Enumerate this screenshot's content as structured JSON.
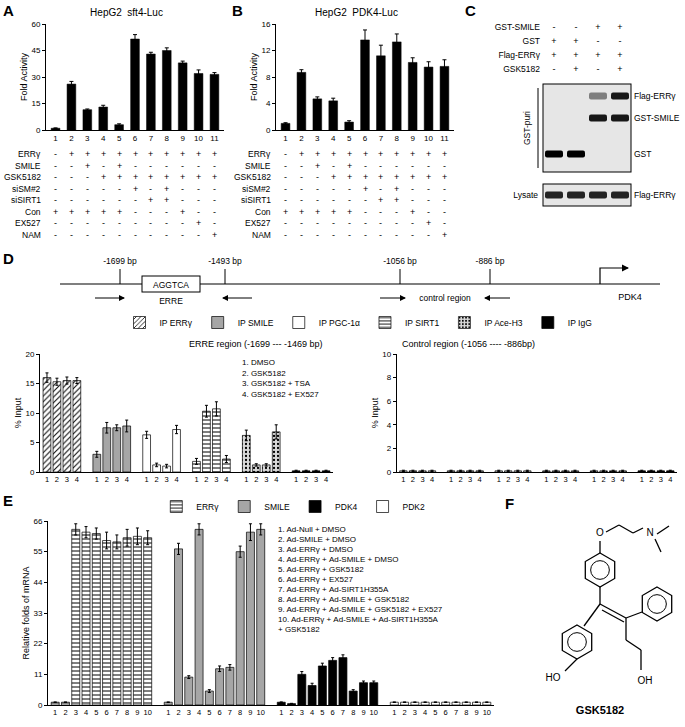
{
  "panel_labels": [
    "A",
    "B",
    "C",
    "D",
    "E",
    "F"
  ],
  "chart_data": [
    {
      "type": "bar",
      "title": "HepG2  sft4-Luc",
      "ylabel": "Fold Activity",
      "categories": [
        "1",
        "2",
        "3",
        "4",
        "5",
        "6",
        "7",
        "8",
        "9",
        "10",
        "11"
      ],
      "values": [
        1,
        26,
        11.5,
        13,
        3,
        51.5,
        43,
        45,
        38,
        32,
        31.5
      ],
      "errors": [
        0.2,
        1.5,
        0.4,
        1,
        0.5,
        2.5,
        1,
        1.5,
        1,
        2,
        1
      ],
      "color": "#000000",
      "ylim": [
        0,
        60
      ],
      "yticks": [
        0,
        15,
        30,
        45,
        60
      ],
      "conditions": [
        {
          "label": "ERRγ",
          "signs": [
            "-",
            "+",
            "+",
            "+",
            "+",
            "+",
            "+",
            "+",
            "+",
            "+",
            "+"
          ]
        },
        {
          "label": "SMILE",
          "signs": [
            "-",
            "-",
            "+",
            "-",
            "+",
            "-",
            "-",
            "-",
            "-",
            "-",
            "-"
          ]
        },
        {
          "label": "GSK5182",
          "signs": [
            "-",
            "-",
            "-",
            "+",
            "+",
            "+",
            "+",
            "+",
            "+",
            "+",
            "+"
          ]
        },
        {
          "label": "siSM#2",
          "signs": [
            "-",
            "-",
            "-",
            "-",
            "-",
            "+",
            "-",
            "+",
            "-",
            "-",
            "-"
          ]
        },
        {
          "label": "siSIRT1",
          "signs": [
            "-",
            "-",
            "-",
            "-",
            "-",
            "-",
            "+",
            "+",
            "-",
            "-",
            "-"
          ]
        },
        {
          "label": "Con",
          "signs": [
            "+",
            "+",
            "+",
            "+",
            "+",
            "-",
            "-",
            "-",
            "+",
            "-",
            "-"
          ]
        },
        {
          "label": "EX527",
          "signs": [
            "-",
            "-",
            "-",
            "-",
            "-",
            "-",
            "-",
            "-",
            "-",
            "+",
            "-"
          ]
        },
        {
          "label": "NAM",
          "signs": [
            "-",
            "-",
            "-",
            "-",
            "-",
            "-",
            "-",
            "-",
            "-",
            "-",
            "+"
          ]
        }
      ]
    },
    {
      "type": "bar",
      "title": "HepG2  PDK4-Luc",
      "ylabel": "Fold Activity",
      "categories": [
        "1",
        "2",
        "3",
        "4",
        "5",
        "6",
        "7",
        "8",
        "9",
        "10",
        "11"
      ],
      "values": [
        1,
        8.7,
        4.7,
        4.4,
        1.2,
        13.6,
        11.2,
        13.3,
        10.2,
        9.5,
        9.6
      ],
      "errors": [
        0.1,
        0.4,
        0.3,
        0.4,
        0.2,
        1.5,
        1.6,
        1.2,
        0.7,
        0.8,
        1
      ],
      "color": "#000000",
      "ylim": [
        0,
        16
      ],
      "yticks": [
        0,
        4,
        8,
        12,
        16
      ],
      "conditions": [
        {
          "label": "ERRγ",
          "signs": [
            "-",
            "+",
            "+",
            "+",
            "+",
            "+",
            "+",
            "+",
            "+",
            "+",
            "+"
          ]
        },
        {
          "label": "SMILE",
          "signs": [
            "-",
            "-",
            "+",
            "-",
            "+",
            "-",
            "-",
            "-",
            "-",
            "-",
            "-"
          ]
        },
        {
          "label": "GSK5182",
          "signs": [
            "-",
            "-",
            "-",
            "+",
            "+",
            "+",
            "+",
            "+",
            "+",
            "+",
            "+"
          ]
        },
        {
          "label": "siSM#2",
          "signs": [
            "-",
            "-",
            "-",
            "-",
            "-",
            "+",
            "-",
            "+",
            "-",
            "-",
            "-"
          ]
        },
        {
          "label": "siSIRT1",
          "signs": [
            "-",
            "-",
            "-",
            "-",
            "-",
            "-",
            "+",
            "+",
            "-",
            "-",
            "-"
          ]
        },
        {
          "label": "Con",
          "signs": [
            "+",
            "+",
            "+",
            "+",
            "+",
            "-",
            "-",
            "-",
            "+",
            "-",
            "-"
          ]
        },
        {
          "label": "EX527",
          "signs": [
            "-",
            "-",
            "-",
            "-",
            "-",
            "-",
            "-",
            "-",
            "-",
            "+",
            "-"
          ]
        },
        {
          "label": "NAM",
          "signs": [
            "-",
            "-",
            "-",
            "-",
            "-",
            "-",
            "-",
            "-",
            "-",
            "-",
            "+"
          ]
        }
      ]
    },
    {
      "type": "bar",
      "title": "ERRE region (-1699 --- -1469 bp)",
      "ylabel": "% Input",
      "categories": [
        "1",
        "2",
        "3",
        "4"
      ],
      "ylim": [
        0,
        20
      ],
      "yticks": [
        0,
        5,
        10,
        15,
        20
      ],
      "legend": "top",
      "series": [
        {
          "name": "IP ERRγ",
          "color": "#ffffff",
          "marker": "hatch_diagonal",
          "values": [
            16,
            15.3,
            15.5,
            15.5
          ],
          "errors": [
            0.8,
            0.6,
            0.6,
            0.5
          ]
        },
        {
          "name": "IP SMILE",
          "color": "#a6a6a6",
          "marker": "solid",
          "values": [
            3,
            7.5,
            7.5,
            7.8
          ],
          "errors": [
            0.5,
            0.9,
            0.5,
            1
          ]
        },
        {
          "name": "IP PGC-1α",
          "color": "#ffffff",
          "marker": "solid",
          "values": [
            6.3,
            1.2,
            1,
            7.2
          ],
          "errors": [
            0.6,
            0.3,
            0.3,
            0.7
          ]
        },
        {
          "name": "IP SIRT1",
          "color": "#ffffff",
          "marker": "hatch_horizontal",
          "values": [
            1.8,
            10.3,
            10.7,
            2.2
          ],
          "errors": [
            0.5,
            1,
            1.2,
            0.6
          ]
        },
        {
          "name": "IP Ace-H3",
          "color": "#d9d9d9",
          "marker": "dotted",
          "values": [
            6.2,
            1.2,
            1.2,
            6.8
          ],
          "errors": [
            0.9,
            0.2,
            0.2,
            1.2
          ]
        },
        {
          "name": "IP IgG",
          "color": "#000000",
          "marker": "solid",
          "values": [
            0.2,
            0.2,
            0.2,
            0.2
          ],
          "errors": [
            0.1,
            0.1,
            0.1,
            0.1
          ]
        }
      ],
      "annotations": [
        "1. DMSO",
        "2. GSK5182",
        "3. GSK5182 + TSA",
        "4. GSK5182 + EX527"
      ]
    },
    {
      "type": "bar",
      "title": "Control region (-1056 ---- -886bp)",
      "ylabel": "% Input",
      "categories": [
        "1",
        "2",
        "3",
        "4"
      ],
      "ylim": [
        0,
        10
      ],
      "yticks": [
        0,
        2,
        4,
        6,
        8,
        10
      ],
      "series": [
        {
          "name": "IP ERRγ",
          "color": "#ffffff",
          "marker": "hatch_diagonal",
          "values": [
            0.1,
            0.1,
            0.1,
            0.1
          ],
          "errors": [
            0.05,
            0.05,
            0.05,
            0.05
          ]
        },
        {
          "name": "IP SMILE",
          "color": "#a6a6a6",
          "marker": "solid",
          "values": [
            0.1,
            0.1,
            0.1,
            0.1
          ],
          "errors": [
            0.05,
            0.05,
            0.05,
            0.05
          ]
        },
        {
          "name": "IP PGC-1α",
          "color": "#ffffff",
          "marker": "solid",
          "values": [
            0.1,
            0.1,
            0.1,
            0.1
          ],
          "errors": [
            0.05,
            0.05,
            0.05,
            0.05
          ]
        },
        {
          "name": "IP SIRT1",
          "color": "#ffffff",
          "marker": "hatch_horizontal",
          "values": [
            0.1,
            0.1,
            0.1,
            0.1
          ],
          "errors": [
            0.05,
            0.05,
            0.05,
            0.05
          ]
        },
        {
          "name": "IP Ace-H3",
          "color": "#d9d9d9",
          "marker": "dotted",
          "values": [
            0.1,
            0.1,
            0.1,
            0.1
          ],
          "errors": [
            0.05,
            0.05,
            0.05,
            0.05
          ]
        },
        {
          "name": "IP IgG",
          "color": "#000000",
          "marker": "solid",
          "values": [
            0.1,
            0.1,
            0.1,
            0.1
          ],
          "errors": [
            0.05,
            0.05,
            0.05,
            0.05
          ]
        }
      ]
    },
    {
      "type": "bar",
      "ylabel": "Relative folds of mRNA",
      "categories": [
        "1",
        "2",
        "3",
        "4",
        "5",
        "6",
        "7",
        "8",
        "9",
        "10"
      ],
      "ylim": [
        0,
        66
      ],
      "yticks": [
        0,
        11,
        22,
        33,
        44,
        55,
        66
      ],
      "legend": "top",
      "series": [
        {
          "name": "ERRγ",
          "color": "#ffffff",
          "marker": "hatch_horizontal",
          "values": [
            1,
            1,
            63,
            62,
            61.5,
            59,
            58.5,
            60,
            60.5,
            60
          ],
          "errors": [
            0.1,
            0.1,
            2,
            2,
            2,
            3,
            2.5,
            3,
            3,
            2.5
          ]
        },
        {
          "name": "SMILE",
          "color": "#a6a6a6",
          "marker": "solid",
          "values": [
            1,
            56,
            10,
            63,
            5,
            13,
            13.5,
            55,
            62,
            63
          ],
          "errors": [
            0.1,
            2,
            0.5,
            2,
            0.5,
            1,
            1,
            2,
            3,
            2
          ]
        },
        {
          "name": "PDK4",
          "color": "#000000",
          "marker": "solid",
          "values": [
            1,
            0.5,
            11,
            7,
            14,
            16,
            17,
            5,
            8,
            8
          ],
          "errors": [
            0.1,
            0.1,
            1,
            0.8,
            1,
            1,
            1,
            0.5,
            0.6,
            0.6
          ]
        },
        {
          "name": "PDK2",
          "color": "#ffffff",
          "marker": "solid",
          "values": [
            1,
            1,
            1,
            1,
            1,
            1,
            1,
            1,
            1,
            1
          ],
          "errors": [
            0.1,
            0.1,
            0.1,
            0.1,
            0.1,
            0.1,
            0.1,
            0.1,
            0.1,
            0.1
          ]
        }
      ],
      "annotations": [
        "1. Ad-Null + DMSO",
        "2. Ad-SMILE + DMSO",
        "3. Ad-ERRγ + DMSO",
        "4. Ad-ERRγ + Ad-SMILE + DMSO",
        "5. Ad-ERRγ + GSK5182",
        "6. Ad-ERRγ + EX527",
        "7. Ad-ERRγ + Ad-SIRT1H355A",
        "8. Ad-ERRγ + Ad-SMILE + GSK5182",
        "9. Ad-ERRγ + Ad-SMILE + GSK5182 + EX527",
        "10. Ad-ERRγ + Ad-SMILE + Ad-SIRT1H355A",
        "+ GSK5182"
      ]
    }
  ],
  "blot": {
    "conditions": [
      {
        "label": "GST-SMILE",
        "signs": [
          "-",
          "-",
          "+",
          "+"
        ]
      },
      {
        "label": "GST",
        "signs": [
          "+",
          "+",
          "-",
          "-"
        ]
      },
      {
        "label": "Flag-ERRγ",
        "signs": [
          "+",
          "+",
          "+",
          "+"
        ]
      },
      {
        "label": "GSK5182",
        "signs": [
          "-",
          "+",
          "-",
          "+"
        ]
      }
    ],
    "panels": [
      {
        "label": "GST-puri",
        "bands": [
          {
            "label": "Flag-ERRγ",
            "intensity": [
              0,
              0,
              0.45,
              0.9
            ]
          },
          {
            "label": "GST-SMILE",
            "intensity": [
              0,
              0,
              0.9,
              0.9
            ]
          },
          {
            "label": "GST",
            "intensity": [
              1,
              1,
              0,
              0
            ]
          }
        ]
      },
      {
        "label": "Lysate",
        "bands": [
          {
            "label": "Flag-ERRγ",
            "intensity": [
              0.85,
              0.85,
              0.85,
              0.85
            ]
          }
        ]
      }
    ]
  },
  "diagram": {
    "positions": [
      "-1699 bp",
      "-1493 bp",
      "-1056 bp",
      "-886 bp"
    ],
    "element": "AGGTCA",
    "element_label": "ERRE",
    "region_label": "control region",
    "gene": "PDK4"
  },
  "structure": {
    "name": "GSK5182",
    "atoms": [
      "O",
      "N",
      "HO",
      "OH"
    ]
  }
}
